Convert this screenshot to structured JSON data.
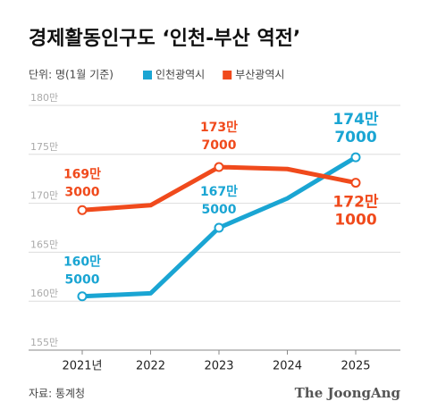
{
  "chart_data": {
    "type": "line",
    "title": "경제활동인구도 ‘인천-부산 역전’",
    "unit": "단위: 명(1월 기준)",
    "source": "자료: 통계청",
    "brand": "The JoongAng",
    "categories": [
      "2021년",
      "2022",
      "2023",
      "2024",
      "2025"
    ],
    "series": [
      {
        "name": "인천광역시",
        "color": "#1aa5d3",
        "values": [
          1605000,
          1608000,
          1675000,
          1705000,
          1747000
        ],
        "value_labels": [
          [
            "160만",
            "5000"
          ],
          null,
          [
            "167만",
            "5000"
          ],
          null,
          [
            "174만",
            "7000"
          ]
        ]
      },
      {
        "name": "부산광역시",
        "color": "#f04a1c",
        "values": [
          1693000,
          1698000,
          1737000,
          1735000,
          1721000
        ],
        "value_labels": [
          [
            "169만",
            "3000"
          ],
          null,
          [
            "173만",
            "7000"
          ],
          null,
          [
            "172만",
            "1000"
          ]
        ]
      }
    ],
    "ylim": [
      1550000,
      1800000
    ],
    "yticks": [
      {
        "value": 1550000,
        "label": "155만"
      },
      {
        "value": 1600000,
        "label": "160만"
      },
      {
        "value": 1650000,
        "label": "165만"
      },
      {
        "value": 1700000,
        "label": "170만"
      },
      {
        "value": 1750000,
        "label": "175만"
      },
      {
        "value": 1800000,
        "label": "180만"
      }
    ],
    "grid": true
  }
}
